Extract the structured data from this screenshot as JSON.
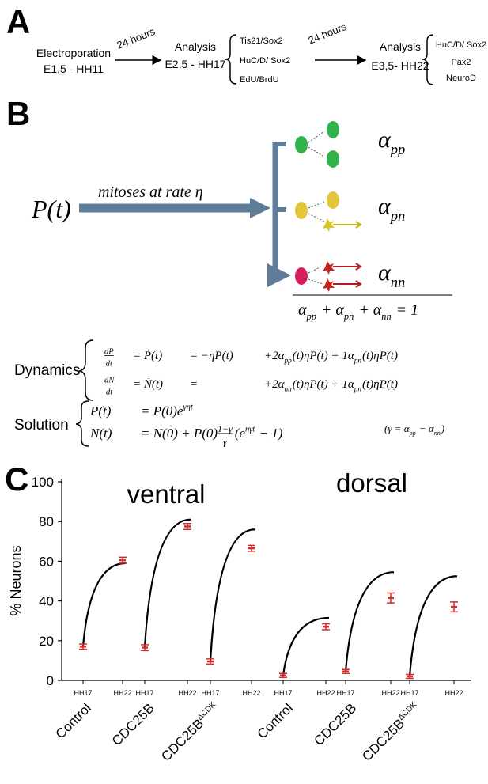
{
  "figure_labels": [
    "A",
    "B",
    "C"
  ],
  "timeline": {
    "steps": [
      {
        "title": "Electroporation",
        "stage": "E1,5 - HH11"
      },
      {
        "title": "Analysis",
        "stage": "E2,5 - HH17"
      },
      {
        "title": "Analysis",
        "stage": "E3,5- HH22"
      }
    ],
    "intervals": [
      "24 hours",
      "24 hours"
    ],
    "marker_sets": [
      [
        "Tis21/Sox2",
        "HuC/D/ Sox2",
        "EdU/BrdU"
      ],
      [
        "HuC/D/ Sox2",
        "Pax2",
        "NeuroD"
      ]
    ]
  },
  "model": {
    "population": "P(t)",
    "process": "mitoses at rate η",
    "fates": [
      [
        "α",
        {
          "sub": "pp"
        }
      ],
      [
        "α",
        {
          "sub": "pn"
        }
      ],
      [
        "α",
        {
          "sub": "nn"
        }
      ]
    ],
    "constraint": [
      "α",
      {
        "sub": "pp"
      },
      " + α",
      {
        "sub": "pn"
      },
      " + α",
      {
        "sub": "nn"
      },
      " = 1"
    ]
  },
  "equations": {
    "dynamics": {
      "label": "Dynamics",
      "rows": [
        [
          [
            {
              "num": "dP",
              "den": "dt"
            }
          ],
          [
            "= Ṗ(t)"
          ],
          [
            "= −ηP(t)"
          ],
          [
            "+2α",
            {
              "sub": "pp"
            },
            "(t)ηP(t) + 1α",
            {
              "sub": "pn"
            },
            "(t)ηP(t)"
          ]
        ],
        [
          [
            {
              "num": "dN",
              "den": "dt"
            }
          ],
          [
            "= Ṅ(t)"
          ],
          [
            "="
          ],
          [
            "+2α",
            {
              "sub": "nn"
            },
            "(t)ηP(t) + 1α",
            {
              "sub": "pn"
            },
            "(t)ηP(t)"
          ]
        ]
      ]
    },
    "solution": {
      "label": "Solution",
      "rows": [
        [
          [
            "P(t)"
          ],
          [
            "= P(0)e",
            {
              "sup": "γηt"
            }
          ]
        ],
        [
          [
            "N(t)"
          ],
          [
            "= N(0) + P(0)",
            {
              "num": "1−γ",
              "den": "γ"
            },
            "(e",
            {
              "sup": "ηγt"
            },
            " − 1)"
          ]
        ]
      ],
      "note": [
        "(γ = α",
        {
          "sub": "pp"
        },
        " − α",
        {
          "sub": "nn"
        },
        ")"
      ]
    }
  },
  "chart_data": {
    "type": "dot",
    "ylabel": "% Neurons",
    "ylim": [
      0,
      100
    ],
    "yticks": [
      0,
      20,
      40,
      60,
      80,
      100
    ],
    "stages": [
      "HH17",
      "HH22"
    ],
    "point_color": "#d42a2a",
    "model_color": "#000000",
    "regions": [
      {
        "title": "ventral",
        "conditions": [
          {
            "name": "Control",
            "values": [
              17,
              60.5
            ],
            "errors": [
              1.3,
              1.5
            ],
            "model": [
              17,
              59
            ]
          },
          {
            "name": "CDC25B",
            "values": [
              16.5,
              77.5
            ],
            "errors": [
              1.5,
              1.5
            ],
            "model": [
              16.5,
              81
            ]
          },
          {
            "name": "CDC25B",
            "name_sup": "ΔCDK",
            "values": [
              9.5,
              66.5
            ],
            "errors": [
              1.3,
              1.5
            ],
            "model": [
              9.5,
              76
            ]
          }
        ]
      },
      {
        "title": "dorsal",
        "conditions": [
          {
            "name": "Control",
            "values": [
              2.5,
              27
            ],
            "errors": [
              1,
              1.5
            ],
            "model": [
              2.5,
              31.5
            ]
          },
          {
            "name": "CDC25B",
            "values": [
              4.5,
              41.5
            ],
            "errors": [
              1,
              2.5
            ],
            "model": [
              4.5,
              54.5
            ]
          },
          {
            "name": "CDC25B",
            "name_sup": "ΔCDK",
            "values": [
              2,
              37
            ],
            "errors": [
              1,
              2.5
            ],
            "model": [
              2,
              52.5
            ]
          }
        ]
      }
    ]
  }
}
